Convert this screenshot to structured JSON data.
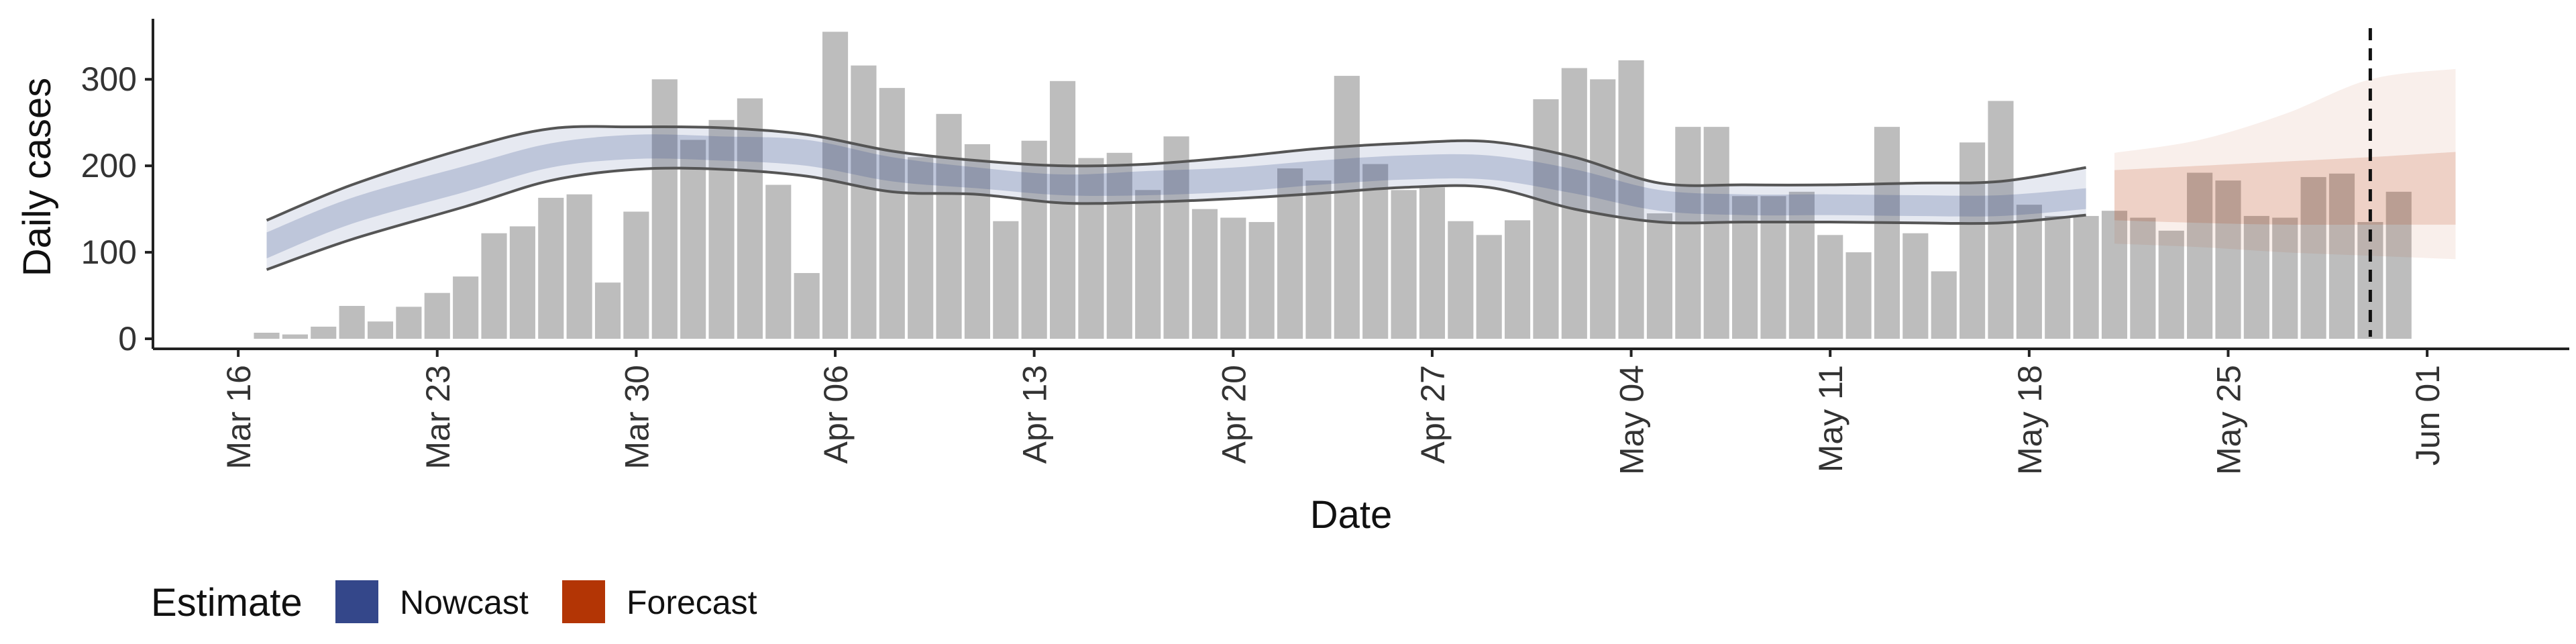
{
  "chart_data": {
    "type": "bar",
    "xlabel": "Date",
    "ylabel": "Daily cases",
    "ylim": [
      0,
      370
    ],
    "y_ticks": [
      0,
      100,
      200,
      300
    ],
    "x_tick_labels": [
      "Mar 16",
      "Mar 23",
      "Mar 30",
      "Apr 06",
      "Apr 13",
      "Apr 20",
      "Apr 27",
      "May 04",
      "May 11",
      "May 18",
      "May 25",
      "Jun 01"
    ],
    "x_tick_dates": [
      "2020-03-16",
      "2020-03-23",
      "2020-03-30",
      "2020-04-06",
      "2020-04-13",
      "2020-04-20",
      "2020-04-27",
      "2020-05-04",
      "2020-05-11",
      "2020-05-18",
      "2020-05-25",
      "2020-06-01"
    ],
    "xlim": [
      "2020-03-13",
      "2020-06-06"
    ],
    "grid": false,
    "bars": {
      "dates": [
        "2020-03-17",
        "2020-03-18",
        "2020-03-19",
        "2020-03-20",
        "2020-03-21",
        "2020-03-22",
        "2020-03-23",
        "2020-03-24",
        "2020-03-25",
        "2020-03-26",
        "2020-03-27",
        "2020-03-28",
        "2020-03-29",
        "2020-03-30",
        "2020-03-31",
        "2020-04-01",
        "2020-04-02",
        "2020-04-03",
        "2020-04-04",
        "2020-04-05",
        "2020-04-06",
        "2020-04-07",
        "2020-04-08",
        "2020-04-09",
        "2020-04-10",
        "2020-04-11",
        "2020-04-12",
        "2020-04-13",
        "2020-04-14",
        "2020-04-15",
        "2020-04-16",
        "2020-04-17",
        "2020-04-18",
        "2020-04-19",
        "2020-04-20",
        "2020-04-21",
        "2020-04-22",
        "2020-04-23",
        "2020-04-24",
        "2020-04-25",
        "2020-04-26",
        "2020-04-27",
        "2020-04-28",
        "2020-04-29",
        "2020-04-30",
        "2020-05-01",
        "2020-05-02",
        "2020-05-03",
        "2020-05-04",
        "2020-05-05",
        "2020-05-06",
        "2020-05-07",
        "2020-05-08",
        "2020-05-09",
        "2020-05-10",
        "2020-05-11",
        "2020-05-12",
        "2020-05-13",
        "2020-05-14",
        "2020-05-15",
        "2020-05-16",
        "2020-05-17",
        "2020-05-18",
        "2020-05-19",
        "2020-05-20",
        "2020-05-21",
        "2020-05-22",
        "2020-05-23",
        "2020-05-24",
        "2020-05-25",
        "2020-05-26",
        "2020-05-27",
        "2020-05-28",
        "2020-05-29",
        "2020-05-30",
        "2020-05-31"
      ],
      "values": [
        7,
        5,
        14,
        38,
        20,
        37,
        53,
        72,
        122,
        130,
        163,
        167,
        65,
        147,
        300,
        230,
        253,
        278,
        178,
        76,
        355,
        316,
        290,
        210,
        260,
        225,
        136,
        229,
        298,
        209,
        215,
        172,
        234,
        150,
        140,
        135,
        197,
        183,
        304,
        202,
        172,
        175,
        136,
        120,
        137,
        277,
        313,
        300,
        322,
        145,
        245,
        245,
        165,
        165,
        170,
        120,
        100,
        245,
        122,
        78,
        227,
        275,
        155,
        142,
        142,
        148,
        140,
        125,
        192,
        183,
        142,
        140,
        187,
        191,
        135,
        170
      ]
    },
    "series": [
      {
        "name": "Nowcast",
        "dates": [
          "2020-03-17",
          "2020-03-20",
          "2020-03-24",
          "2020-03-27",
          "2020-03-30",
          "2020-04-02",
          "2020-04-05",
          "2020-04-08",
          "2020-04-11",
          "2020-04-14",
          "2020-04-17",
          "2020-04-20",
          "2020-04-23",
          "2020-04-26",
          "2020-04-29",
          "2020-05-02",
          "2020-05-05",
          "2020-05-08",
          "2020-05-11",
          "2020-05-14",
          "2020-05-17",
          "2020-05-20"
        ],
        "median": [
          108,
          148,
          185,
          212,
          222,
          220,
          215,
          196,
          186,
          178,
          180,
          184,
          192,
          198,
          198,
          182,
          160,
          155,
          155,
          154,
          154,
          162
        ],
        "inner_low": [
          93,
          133,
          170,
          198,
          208,
          206,
          200,
          182,
          174,
          166,
          166,
          170,
          178,
          184,
          184,
          168,
          148,
          143,
          143,
          142,
          142,
          150
        ],
        "inner_high": [
          123,
          163,
          200,
          226,
          236,
          234,
          230,
          210,
          198,
          190,
          194,
          198,
          206,
          212,
          212,
          196,
          172,
          167,
          167,
          166,
          166,
          174
        ],
        "outer_low": [
          80,
          115,
          153,
          183,
          196,
          196,
          188,
          170,
          167,
          157,
          158,
          162,
          168,
          175,
          175,
          150,
          135,
          135,
          135,
          134,
          134,
          143
        ],
        "outer_high": [
          137,
          178,
          220,
          243,
          245,
          244,
          236,
          217,
          206,
          200,
          202,
          210,
          220,
          226,
          228,
          210,
          180,
          178,
          178,
          180,
          182,
          198
        ]
      },
      {
        "name": "Forecast",
        "dates": [
          "2020-05-21",
          "2020-05-24",
          "2020-05-27",
          "2020-05-30",
          "2020-06-02"
        ],
        "inner_low": [
          137,
          134,
          132,
          132,
          132
        ],
        "inner_high": [
          195,
          200,
          205,
          210,
          216
        ],
        "outer_low": [
          110,
          106,
          100,
          96,
          92
        ],
        "outer_high": [
          215,
          230,
          260,
          300,
          312
        ]
      }
    ],
    "vline_date": "2020-05-30",
    "legend": {
      "title": "Estimate",
      "position": "bottom-left",
      "entries": [
        {
          "label": "Nowcast",
          "color": "#34478a"
        },
        {
          "label": "Forecast",
          "color": "#b33505"
        }
      ]
    },
    "colors": {
      "bar": "#bdbdbd",
      "nowcast": "#34478a",
      "forecast": "#b33505",
      "band_edge": "#555555",
      "vline": "#111111",
      "axis": "#222222"
    }
  }
}
